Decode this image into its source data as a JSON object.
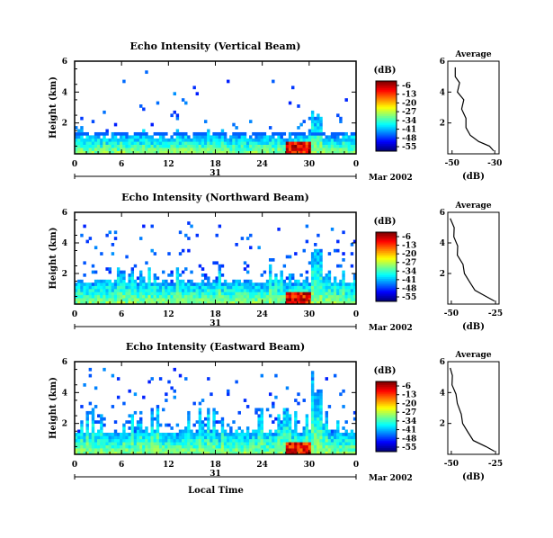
{
  "chart_data": [
    {
      "type": "heatmap",
      "title": "Echo Intensity (Vertical Beam)",
      "ylabel": "Height (km)",
      "x_ticks": [
        "0",
        "6",
        "12",
        "18",
        "24",
        "30",
        "0"
      ],
      "y_ticks": [
        "6",
        "4",
        "2"
      ],
      "date_center": "31",
      "date_suffix": "Mar 2002",
      "ylim": [
        0,
        6
      ],
      "colorbar": {
        "label": "(dB)",
        "ticks": [
          "-6",
          "-13",
          "-20",
          "-27",
          "-34",
          "-41",
          "-48",
          "-55"
        ]
      },
      "avg_panel": {
        "title": "Average",
        "xlabel": "(dB)",
        "x_ticks": [
          "-50",
          "-30"
        ]
      },
      "avg_profile": [
        [
          -30,
          0.2
        ],
        [
          -33,
          0.5
        ],
        [
          -37,
          0.8
        ],
        [
          -42,
          1.2
        ],
        [
          -43,
          1.7
        ],
        [
          -44,
          2.3
        ],
        [
          -45,
          2.9
        ],
        [
          -45,
          3.5
        ],
        [
          -47,
          4.0
        ],
        [
          -47,
          4.6
        ],
        [
          -48,
          5.0
        ],
        [
          -49,
          5.6
        ]
      ]
    },
    {
      "type": "heatmap",
      "title": "Echo Intensity (Northward Beam)",
      "ylabel": "Height (km)",
      "x_ticks": [
        "0",
        "6",
        "12",
        "18",
        "24",
        "30",
        "0"
      ],
      "y_ticks": [
        "6",
        "4",
        "2"
      ],
      "date_center": "31",
      "date_suffix": "Mar 2002",
      "ylim": [
        0,
        6
      ],
      "colorbar": {
        "label": "(dB)",
        "ticks": [
          "-6",
          "-13",
          "-20",
          "-27",
          "-34",
          "-41",
          "-48",
          "-55"
        ]
      },
      "avg_panel": {
        "title": "Average",
        "xlabel": "(dB)",
        "x_ticks": [
          "-50",
          "-25"
        ]
      },
      "avg_profile": [
        [
          -25,
          0.2
        ],
        [
          -31,
          0.5
        ],
        [
          -36,
          0.9
        ],
        [
          -40,
          1.4
        ],
        [
          -42,
          2.0
        ],
        [
          -44,
          2.6
        ],
        [
          -46,
          3.2
        ],
        [
          -47,
          3.8
        ],
        [
          -48,
          4.4
        ],
        [
          -49,
          5.0
        ],
        [
          -50,
          5.6
        ]
      ]
    },
    {
      "type": "heatmap",
      "title": "Echo Intensity (Eastward Beam)",
      "ylabel": "Height (km)",
      "x_ticks": [
        "0",
        "6",
        "12",
        "18",
        "24",
        "30",
        "0"
      ],
      "y_ticks": [
        "6",
        "4",
        "2"
      ],
      "date_center": "31",
      "date_suffix": "Mar 2002",
      "ylim": [
        0,
        6
      ],
      "colorbar": {
        "label": "(dB)",
        "ticks": [
          "-6",
          "-13",
          "-20",
          "-27",
          "-34",
          "-41",
          "-48",
          "-55"
        ]
      },
      "avg_panel": {
        "title": "Average",
        "xlabel": "(dB)",
        "x_ticks": [
          "-50",
          "-25"
        ]
      },
      "avg_profile": [
        [
          -25,
          0.2
        ],
        [
          -31,
          0.5
        ],
        [
          -37,
          0.9
        ],
        [
          -41,
          1.4
        ],
        [
          -43,
          2.0
        ],
        [
          -45,
          2.6
        ],
        [
          -46,
          3.3
        ],
        [
          -48,
          3.9
        ],
        [
          -49,
          4.5
        ],
        [
          -50,
          5.1
        ],
        [
          -50,
          5.6
        ]
      ]
    }
  ],
  "xlabel": "Local Time"
}
